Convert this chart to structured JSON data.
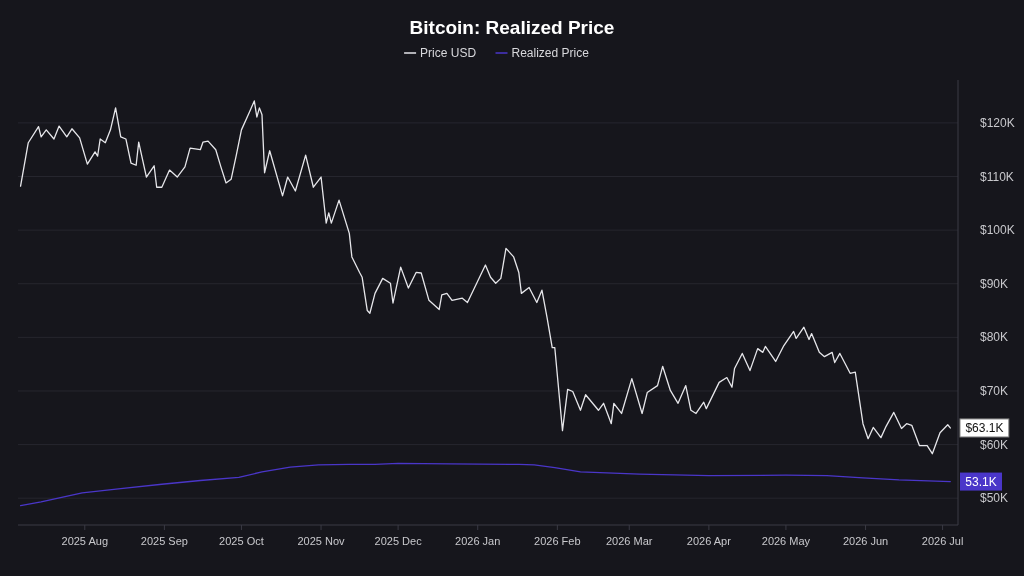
{
  "chart_data": {
    "type": "line",
    "title": "Bitcoin: Realized Price",
    "xlim": [
      "2025-07-06",
      "2026-07-07"
    ],
    "xticks": [
      {
        "value": "2025-08-01",
        "label": "2025 Aug"
      },
      {
        "value": "2025-09-01",
        "label": "2025 Sep"
      },
      {
        "value": "2025-10-01",
        "label": "2025 Oct"
      },
      {
        "value": "2025-11-01",
        "label": "2025 Nov"
      },
      {
        "value": "2025-12-01",
        "label": "2025 Dec"
      },
      {
        "value": "2026-01-01",
        "label": "2026 Jan"
      },
      {
        "value": "2026-02-01",
        "label": "2026 Feb"
      },
      {
        "value": "2026-03-01",
        "label": "2026 Mar"
      },
      {
        "value": "2026-04-01",
        "label": "2026 Apr"
      },
      {
        "value": "2026-05-01",
        "label": "2026 May"
      },
      {
        "value": "2026-06-01",
        "label": "2026 Jun"
      },
      {
        "value": "2026-07-01",
        "label": "2026 Jul"
      }
    ],
    "ylim": [
      45000,
      128000
    ],
    "yticks": [
      {
        "value": 50000,
        "label": "$50K"
      },
      {
        "value": 60000,
        "label": "$60K"
      },
      {
        "value": 70000,
        "label": "$70K"
      },
      {
        "value": 80000,
        "label": "$80K"
      },
      {
        "value": 90000,
        "label": "$90K"
      },
      {
        "value": 100000,
        "label": "$100K"
      },
      {
        "value": 110000,
        "label": "$110K"
      },
      {
        "value": 120000,
        "label": "$120K"
      }
    ],
    "grid": "y",
    "legend": "top",
    "series": [
      {
        "name": "Price USD",
        "color": "#e6e6ea",
        "x": [
          "2025-07-07",
          "2025-07-10",
          "2025-07-14",
          "2025-07-15",
          "2025-07-17",
          "2025-07-20",
          "2025-07-22",
          "2025-07-25",
          "2025-07-27",
          "2025-07-30",
          "2025-08-02",
          "2025-08-05",
          "2025-08-06",
          "2025-08-07",
          "2025-08-09",
          "2025-08-11",
          "2025-08-13",
          "2025-08-15",
          "2025-08-17",
          "2025-08-19",
          "2025-08-21",
          "2025-08-22",
          "2025-08-25",
          "2025-08-28",
          "2025-08-29",
          "2025-08-31",
          "2025-09-03",
          "2025-09-06",
          "2025-09-09",
          "2025-09-11",
          "2025-09-15",
          "2025-09-16",
          "2025-09-18",
          "2025-09-21",
          "2025-09-23",
          "2025-09-25",
          "2025-09-27",
          "2025-09-29",
          "2025-10-01",
          "2025-10-04",
          "2025-10-06",
          "2025-10-07",
          "2025-10-08",
          "2025-10-09",
          "2025-10-10",
          "2025-10-12",
          "2025-10-17",
          "2025-10-19",
          "2025-10-22",
          "2025-10-26",
          "2025-10-29",
          "2025-11-01",
          "2025-11-03",
          "2025-11-04",
          "2025-11-05",
          "2025-11-08",
          "2025-11-12",
          "2025-11-13",
          "2025-11-16",
          "2025-11-17",
          "2025-11-19",
          "2025-11-20",
          "2025-11-22",
          "2025-11-25",
          "2025-11-28",
          "2025-11-29",
          "2025-12-02",
          "2025-12-05",
          "2025-12-08",
          "2025-12-10",
          "2025-12-13",
          "2025-12-17",
          "2025-12-18",
          "2025-12-20",
          "2025-12-22",
          "2025-12-26",
          "2025-12-28",
          "2026-01-04",
          "2026-01-06",
          "2026-01-08",
          "2026-01-10",
          "2026-01-12",
          "2026-01-15",
          "2026-01-17",
          "2026-01-18",
          "2026-01-21",
          "2026-01-24",
          "2026-01-26",
          "2026-01-28",
          "2026-01-30",
          "2026-01-31",
          "2026-02-03",
          "2026-02-05",
          "2026-02-07",
          "2026-02-10",
          "2026-02-12",
          "2026-02-17",
          "2026-02-19",
          "2026-02-22",
          "2026-02-23",
          "2026-02-26",
          "2026-03-02",
          "2026-03-06",
          "2026-03-08",
          "2026-03-12",
          "2026-03-14",
          "2026-03-17",
          "2026-03-20",
          "2026-03-23",
          "2026-03-25",
          "2026-03-27",
          "2026-03-30",
          "2026-03-31",
          "2026-04-05",
          "2026-04-08",
          "2026-04-10",
          "2026-04-11",
          "2026-04-14",
          "2026-04-17",
          "2026-04-20",
          "2026-04-22",
          "2026-04-23",
          "2026-04-27",
          "2026-04-30",
          "2026-05-04",
          "2026-05-05",
          "2026-05-08",
          "2026-05-10",
          "2026-05-11",
          "2026-05-14",
          "2026-05-16",
          "2026-05-19",
          "2026-05-20",
          "2026-05-22",
          "2026-05-26",
          "2026-05-28",
          "2026-05-31",
          "2026-06-02",
          "2026-06-04",
          "2026-06-07",
          "2026-06-09",
          "2026-06-12",
          "2026-06-15",
          "2026-06-17",
          "2026-06-19",
          "2026-06-22",
          "2026-06-25",
          "2026-06-27",
          "2026-06-30",
          "2026-07-03",
          "2026-07-04"
        ],
        "values": [
          108200,
          116300,
          119300,
          117400,
          118700,
          117000,
          119400,
          117400,
          118900,
          117200,
          112300,
          114600,
          113800,
          117000,
          116300,
          118700,
          122800,
          117400,
          117000,
          112500,
          112100,
          116400,
          109900,
          112000,
          108000,
          108000,
          111200,
          109900,
          111800,
          115300,
          115000,
          116400,
          116600,
          115000,
          111800,
          108800,
          109500,
          114000,
          118700,
          121900,
          124100,
          121100,
          122800,
          121500,
          110700,
          114800,
          106400,
          109900,
          107300,
          114000,
          108000,
          109900,
          101300,
          103200,
          101300,
          105600,
          99400,
          95000,
          92100,
          91200,
          85000,
          84500,
          88200,
          91000,
          90100,
          86400,
          93100,
          89200,
          92100,
          92000,
          86900,
          85200,
          87900,
          88200,
          86900,
          87300,
          86500,
          93500,
          91200,
          90100,
          91000,
          96600,
          95000,
          92100,
          88200,
          89300,
          86500,
          88800,
          83700,
          78100,
          78100,
          62600,
          70300,
          69900,
          66400,
          69300,
          66400,
          67700,
          63900,
          67700,
          65800,
          72300,
          65800,
          69700,
          71000,
          74600,
          70100,
          67700,
          71000,
          66400,
          65800,
          67900,
          66700,
          71600,
          72500,
          70700,
          74200,
          77000,
          73800,
          77900,
          77200,
          78300,
          75500,
          78300,
          81100,
          79800,
          81900,
          79600,
          80700,
          77200,
          76400,
          77200,
          75300,
          77000,
          73300,
          73500,
          63900,
          61100,
          63200,
          61300,
          63400,
          66000,
          63000,
          63900,
          63600,
          59800,
          59800,
          58300,
          62200,
          63700,
          63100
        ]
      },
      {
        "name": "Realized Price",
        "color": "#4a36c9",
        "x": [
          "2025-07-07",
          "2025-07-15",
          "2025-07-31",
          "2025-08-15",
          "2025-08-31",
          "2025-09-15",
          "2025-09-30",
          "2025-10-09",
          "2025-10-20",
          "2025-10-31",
          "2025-11-12",
          "2025-11-22",
          "2025-12-01",
          "2025-12-21",
          "2026-01-17",
          "2026-01-23",
          "2026-01-31",
          "2026-02-10",
          "2026-03-05",
          "2026-04-01",
          "2026-05-01",
          "2026-05-17",
          "2026-05-31",
          "2026-06-14",
          "2026-07-04"
        ],
        "values": [
          48600,
          49300,
          51000,
          51800,
          52600,
          53300,
          53900,
          54900,
          55800,
          56200,
          56300,
          56300,
          56500,
          56400,
          56300,
          56200,
          55700,
          54900,
          54500,
          54200,
          54300,
          54200,
          53800,
          53400,
          53100
        ]
      }
    ],
    "annotations": [
      {
        "text": "$63.1K",
        "x": "2026-07-04",
        "y": 63100
      },
      {
        "text": "53.1K",
        "x": "2026-07-04",
        "y": 53100
      }
    ]
  }
}
